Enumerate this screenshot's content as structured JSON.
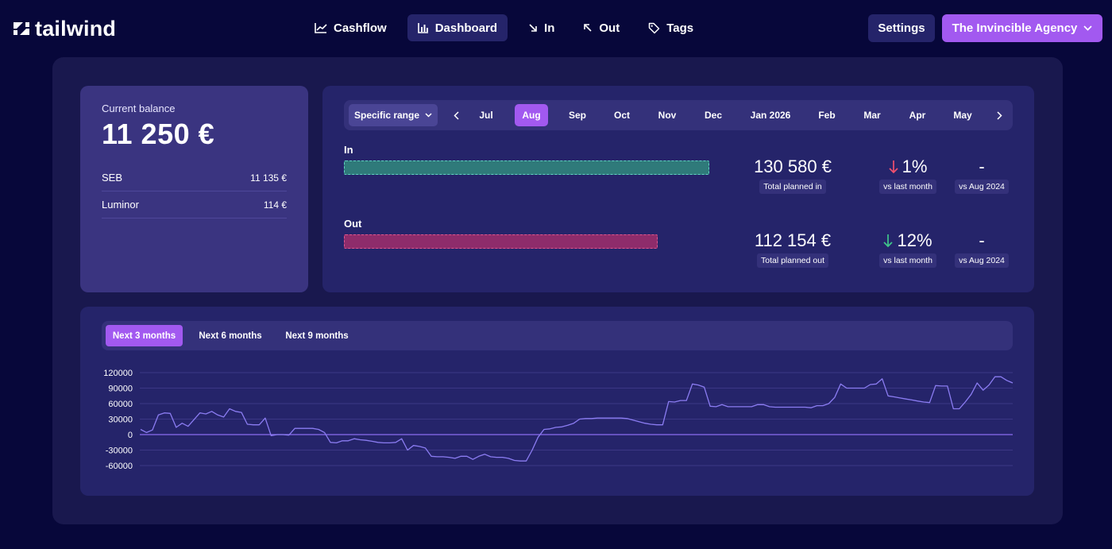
{
  "brand": {
    "name": "tailwind"
  },
  "nav": {
    "items": [
      {
        "label": "Cashflow",
        "icon": "trend-line-icon"
      },
      {
        "label": "Dashboard",
        "icon": "bar-chart-icon",
        "active": true
      },
      {
        "label": "In",
        "icon": "arrow-down-right-icon"
      },
      {
        "label": "Out",
        "icon": "arrow-up-left-icon"
      },
      {
        "label": "Tags",
        "icon": "tag-icon"
      }
    ],
    "settings": "Settings",
    "agency": "The Invincible Agency"
  },
  "balance": {
    "label": "Current balance",
    "amount": "11 250 €",
    "accounts": [
      {
        "name": "SEB",
        "amount": "11 135 €"
      },
      {
        "name": "Luminor",
        "amount": "114 €"
      }
    ]
  },
  "planning": {
    "range_button": "Specific range",
    "months": [
      "Jul",
      "Aug",
      "Sep",
      "Oct",
      "Nov",
      "Dec",
      "Jan 2026",
      "Feb",
      "Mar",
      "Apr",
      "May"
    ],
    "active_month": "Aug",
    "in": {
      "label": "In",
      "amount": "130 580 €",
      "amount_caption": "Total planned in",
      "change": "1%",
      "change_direction": "down",
      "change_caption": "vs last month",
      "yoy": "-",
      "yoy_caption": "vs Aug 2024",
      "bar_fill": 1.0
    },
    "out": {
      "label": "Out",
      "amount": "112 154 €",
      "amount_caption": "Total planned out",
      "change": "12%",
      "change_direction": "down",
      "change_caption": "vs last month",
      "yoy": "-",
      "yoy_caption": "vs Aug 2024",
      "bar_fill": 0.859
    }
  },
  "forecast": {
    "tabs": [
      "Next 3 months",
      "Next 6 months",
      "Next 9 months"
    ],
    "active_tab": "Next 3 months"
  },
  "colors": {
    "accent": "#a259f0",
    "line": "#8b7cf2",
    "in_fill": "#2f7a7a",
    "out_fill": "#8e2c6b",
    "down_red": "#f0506e",
    "down_green": "#3fc78a"
  },
  "chart_data": {
    "type": "line",
    "title": "",
    "xlabel": "",
    "ylabel": "",
    "ylim": [
      -60000,
      120000
    ],
    "yticks": [
      120000,
      90000,
      60000,
      30000,
      0,
      -30000,
      -60000
    ],
    "grid": true,
    "series": [
      {
        "values": [
          10000,
          4000,
          9000,
          38000,
          42000,
          41000,
          14000,
          22000,
          16000,
          29000,
          42000,
          40000,
          45000,
          38000,
          34000,
          50000,
          45000,
          43000,
          20000,
          19000,
          19000,
          32000,
          -2000,
          0,
          0,
          -1000,
          12000,
          12000,
          12000,
          12000,
          10000,
          4000,
          -15000,
          -16000,
          -12000,
          -12000,
          -8000,
          -10000,
          -11000,
          -13000,
          -15000,
          -16000,
          -16000,
          -15000,
          -8000,
          -30000,
          -21000,
          -23000,
          -26000,
          -42000,
          -43000,
          -43000,
          -44000,
          -46000,
          -42000,
          -42000,
          -48000,
          -42000,
          -38000,
          -43000,
          -44000,
          -44000,
          -46000,
          -50000,
          -51000,
          -51000,
          -30000,
          -5000,
          10000,
          11000,
          14000,
          15000,
          18000,
          22000,
          30000,
          31000,
          31000,
          32000,
          32000,
          32000,
          32000,
          32000,
          31000,
          28000,
          25000,
          22000,
          20000,
          19000,
          19000,
          64000,
          63000,
          66000,
          66000,
          98000,
          96000,
          92000,
          55000,
          54000,
          58000,
          54000,
          54000,
          54000,
          54000,
          54000,
          58000,
          58000,
          54000,
          53000,
          53000,
          53000,
          53000,
          53000,
          53000,
          52000,
          56000,
          56000,
          60000,
          72000,
          98000,
          90000,
          90000,
          90000,
          90000,
          97000,
          98000,
          108000,
          75000,
          73000,
          71000,
          69000,
          67000,
          65000,
          63000,
          62000,
          95000,
          94000,
          94000,
          50000,
          50000,
          63000,
          78000,
          100000,
          86000,
          96000,
          112000,
          112000,
          105000,
          100000
        ]
      }
    ]
  }
}
